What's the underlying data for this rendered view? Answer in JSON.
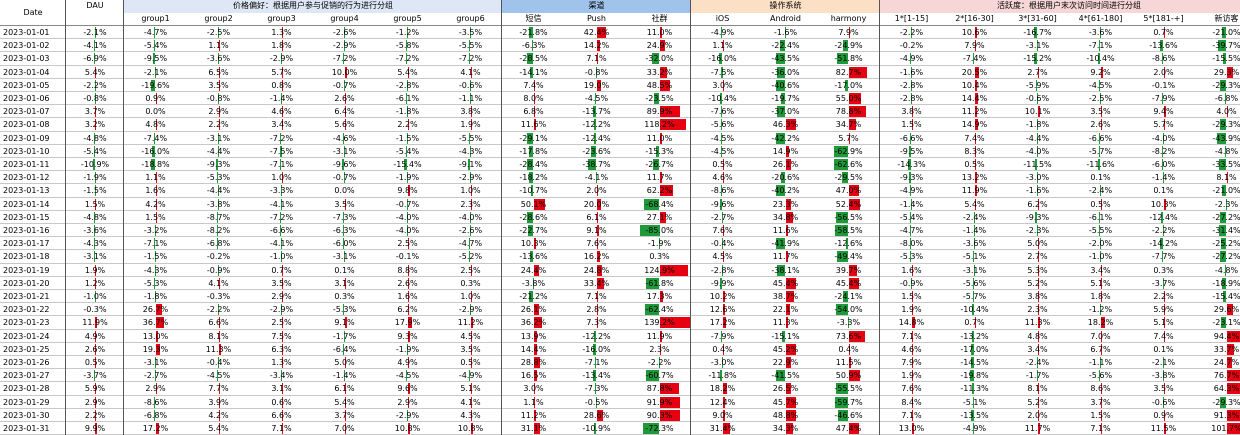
{
  "header": {
    "date_label": "Date",
    "dau_label": "DAU",
    "groups": [
      {
        "label": "价格偏好：根据用户参与促销的行为进行分组",
        "color": "#dde7f6",
        "columns": [
          "group1",
          "group2",
          "group3",
          "group4",
          "group5",
          "group6"
        ]
      },
      {
        "label": "渠道",
        "color": "#9fc3ea",
        "columns": [
          "短信",
          "Push",
          "社群"
        ]
      },
      {
        "label": "操作系统",
        "color": "#fbe0c6",
        "columns": [
          "iOS",
          "Android",
          "harmony"
        ]
      },
      {
        "label": "活跃度：根据用户末次访问时间进行分组",
        "color": "#f6d6d6",
        "columns": [
          "1*[1-15]",
          "2*[16-30]",
          "3*[31-60]",
          "4*[61-180]",
          "5*[181-+]",
          "新访客"
        ]
      }
    ]
  },
  "colors": {
    "positive": "#e60012",
    "negative": "#1f9a3a",
    "grid": "#c8c8c8"
  },
  "chart_data": {
    "type": "table",
    "columns": [
      "DAU",
      "group1",
      "group2",
      "group3",
      "group4",
      "group5",
      "group6",
      "短信",
      "Push",
      "社群",
      "iOS",
      "Android",
      "harmony",
      "1*[1-15]",
      "2*[16-30]",
      "3*[31-60]",
      "4*[61-180]",
      "5*[181-+]",
      "新访客"
    ],
    "rows": [
      {
        "date": "2023-01-01",
        "values": [
          "-2.1%",
          "-4.7%",
          "-2.5%",
          "1.3%",
          "-2.6%",
          "-1.2%",
          "-3.5%",
          "-21.8%",
          "42.4%",
          "11.0%",
          "-4.9%",
          "-1.6%",
          "7.9%",
          "-2.2%",
          "10.6%",
          "-16.7%",
          "-3.6%",
          "0.7%",
          "-21.0%"
        ]
      },
      {
        "date": "2023-01-02",
        "values": [
          "-4.1%",
          "-5.4%",
          "1.1%",
          "1.8%",
          "-2.9%",
          "-5.8%",
          "-5.5%",
          "-6.3%",
          "14.2%",
          "24.9%",
          "1.1%",
          "-22.4%",
          "-24.9%",
          "-0.2%",
          "7.9%",
          "-3.1%",
          "-7.1%",
          "-13.6%",
          "-39.7%"
        ]
      },
      {
        "date": "2023-01-03",
        "values": [
          "-6.9%",
          "-9.5%",
          "-3.6%",
          "-2.9%",
          "-7.2%",
          "-7.2%",
          "-7.2%",
          "-28.5%",
          "7.1%",
          "-32.0%",
          "-16.0%",
          "-43.5%",
          "-51.8%",
          "-4.9%",
          "-7.4%",
          "-15.2%",
          "-10.4%",
          "-8.6%",
          "-15.5%"
        ]
      },
      {
        "date": "2023-01-04",
        "values": [
          "5.4%",
          "-2.1%",
          "6.5%",
          "5.7%",
          "10.0%",
          "5.4%",
          "4.1%",
          "-14.1%",
          "-0.8%",
          "33.2%",
          "-7.5%",
          "-36.0%",
          "82.7%",
          "-1.6%",
          "20.5%",
          "2.7%",
          "9.2%",
          "2.0%",
          "29.3%"
        ]
      },
      {
        "date": "2023-01-05",
        "values": [
          "-2.2%",
          "-19.6%",
          "3.5%",
          "0.8%",
          "-0.7%",
          "-2.8%",
          "-0.6%",
          "7.4%",
          "19.0%",
          "48.5%",
          "3.0%",
          "-40.6%",
          "-17.0%",
          "-2.8%",
          "10.4%",
          "-5.9%",
          "-4.5%",
          "-0.1%",
          "-29.3%"
        ]
      },
      {
        "date": "2023-01-06",
        "values": [
          "-0.8%",
          "0.9%",
          "-0.8%",
          "-1.4%",
          "2.6%",
          "-6.1%",
          "-1.1%",
          "8.0%",
          "-4.5%",
          "-23.5%",
          "-10.4%",
          "-19.7%",
          "55.0%",
          "-2.8%",
          "14.4%",
          "-0.6%",
          "-2.5%",
          "-7.9%",
          "-6.8%"
        ]
      },
      {
        "date": "2023-01-07",
        "values": [
          "3.7%",
          "0.0%",
          "2.9%",
          "4.6%",
          "6.4%",
          "-1.8%",
          "3.8%",
          "6.8%",
          "-13.7%",
          "89.9%",
          "-7.6%",
          "-37.0%",
          "78.8%",
          "3.8%",
          "11.2%",
          "10.1%",
          "3.5%",
          "9.4%",
          "4.0%"
        ]
      },
      {
        "date": "2023-01-08",
        "values": [
          "3.2%",
          "4.8%",
          "2.2%",
          "3.4%",
          "5.6%",
          "2.2%",
          "1.9%",
          "11.6%",
          "-12.2%",
          "118.2%",
          "-5.6%",
          "46.3%",
          "34.7%",
          "1.5%",
          "14.9%",
          "-1.8%",
          "2.6%",
          "5.7%",
          "-29.3%"
        ]
      },
      {
        "date": "2023-01-09",
        "values": [
          "-4.8%",
          "-7.4%",
          "-3.1%",
          "-7.2%",
          "-4.6%",
          "-1.5%",
          "-5.5%",
          "-29.1%",
          "-12.4%",
          "11.0%",
          "-4.5%",
          "-42.2%",
          "5.7%",
          "-6.6%",
          "7.4%",
          "-4.4%",
          "-6.6%",
          "-4.0%",
          "-43.9%"
        ]
      },
      {
        "date": "2023-01-10",
        "values": [
          "-5.4%",
          "-16.0%",
          "-4.4%",
          "-7.5%",
          "-3.1%",
          "-5.4%",
          "-4.3%",
          "-17.8%",
          "-23.6%",
          "-15.3%",
          "-4.5%",
          "14.9%",
          "-62.9%",
          "-9.5%",
          "8.3%",
          "-4.0%",
          "-5.7%",
          "-8.2%",
          "-4.8%"
        ]
      },
      {
        "date": "2023-01-11",
        "values": [
          "-10.9%",
          "-18.8%",
          "-9.3%",
          "-7.1%",
          "-9.6%",
          "-15.4%",
          "-9.1%",
          "-28.4%",
          "-38.7%",
          "-26.7%",
          "0.5%",
          "26.1%",
          "-62.6%",
          "-14.3%",
          "0.5%",
          "-11.5%",
          "-11.6%",
          "-6.0%",
          "-33.5%"
        ]
      },
      {
        "date": "2023-01-12",
        "values": [
          "-1.9%",
          "1.1%",
          "-5.3%",
          "1.0%",
          "-0.7%",
          "-1.9%",
          "-2.9%",
          "-18.2%",
          "-4.1%",
          "11.7%",
          "4.6%",
          "-20.6%",
          "-29.5%",
          "-9.3%",
          "13.2%",
          "-3.0%",
          "0.1%",
          "-1.4%",
          "8.1%"
        ]
      },
      {
        "date": "2023-01-13",
        "values": [
          "-1.5%",
          "1.6%",
          "-4.4%",
          "-3.3%",
          "0.0%",
          "9.8%",
          "1.0%",
          "-10.7%",
          "2.0%",
          "62.2%",
          "-8.6%",
          "-40.2%",
          "47.0%",
          "-4.9%",
          "11.9%",
          "-1.6%",
          "-2.4%",
          "0.1%",
          "-21.0%"
        ]
      },
      {
        "date": "2023-01-14",
        "values": [
          "1.5%",
          "4.2%",
          "-3.8%",
          "-4.1%",
          "3.5%",
          "-0.7%",
          "2.3%",
          "50.1%",
          "20.0%",
          "-68.4%",
          "-9.6%",
          "23.3%",
          "52.4%",
          "-1.4%",
          "5.4%",
          "6.2%",
          "0.5%",
          "10.3%",
          "-2.3%"
        ]
      },
      {
        "date": "2023-01-15",
        "values": [
          "-4.8%",
          "1.5%",
          "-8.7%",
          "-7.2%",
          "-7.3%",
          "-4.0%",
          "-4.0%",
          "-28.6%",
          "6.1%",
          "27.1%",
          "-2.7%",
          "34.8%",
          "-56.5%",
          "-5.4%",
          "-2.4%",
          "-9.3%",
          "-6.1%",
          "-12.4%",
          "-27.2%"
        ]
      },
      {
        "date": "2023-01-16",
        "values": [
          "-3.6%",
          "-3.2%",
          "-8.2%",
          "-6.6%",
          "-6.3%",
          "-4.0%",
          "-2.6%",
          "-22.7%",
          "9.1%",
          "-85.0%",
          "7.6%",
          "11.6%",
          "-58.5%",
          "-4.7%",
          "-1.4%",
          "-2.3%",
          "-5.5%",
          "-2.2%",
          "-31.4%"
        ]
      },
      {
        "date": "2023-01-17",
        "values": [
          "-4.3%",
          "-7.1%",
          "-6.8%",
          "-4.1%",
          "-6.0%",
          "2.5%",
          "-4.7%",
          "10.3%",
          "7.6%",
          "-1.9%",
          "-0.4%",
          "-41.9%",
          "-12.6%",
          "-8.0%",
          "-3.6%",
          "5.0%",
          "-2.0%",
          "-14.2%",
          "-25.2%"
        ]
      },
      {
        "date": "2023-01-18",
        "values": [
          "-3.1%",
          "-1.5%",
          "-0.2%",
          "-1.0%",
          "-3.1%",
          "-0.1%",
          "-5.2%",
          "-13.6%",
          "16.2%",
          "0.3%",
          "4.5%",
          "11.7%",
          "-49.4%",
          "-5.3%",
          "-5.1%",
          "2.7%",
          "-1.0%",
          "-7.7%",
          "-27.2%"
        ]
      },
      {
        "date": "2023-01-19",
        "values": [
          "1.9%",
          "-4.3%",
          "-0.9%",
          "0.7%",
          "0.1%",
          "8.8%",
          "2.5%",
          "24.4%",
          "24.8%",
          "124.9%",
          "-2.8%",
          "-38.1%",
          "39.7%",
          "1.6%",
          "-3.1%",
          "5.3%",
          "3.4%",
          "0.3%",
          "-4.8%"
        ]
      },
      {
        "date": "2023-01-20",
        "values": [
          "1.2%",
          "-5.3%",
          "4.1%",
          "3.5%",
          "3.1%",
          "2.6%",
          "0.3%",
          "-3.8%",
          "33.4%",
          "-61.8%",
          "-9.9%",
          "45.4%",
          "45.4%",
          "-0.9%",
          "-5.6%",
          "5.2%",
          "5.1%",
          "-3.7%",
          "-18.9%"
        ]
      },
      {
        "date": "2023-01-21",
        "values": [
          "-1.0%",
          "-1.8%",
          "-0.3%",
          "2.9%",
          "0.3%",
          "1.6%",
          "1.0%",
          "-21.2%",
          "7.1%",
          "17.3%",
          "10.2%",
          "38.7%",
          "-24.1%",
          "1.5%",
          "-5.7%",
          "3.8%",
          "1.8%",
          "2.2%",
          "-15.4%"
        ]
      },
      {
        "date": "2023-01-22",
        "values": [
          "-0.3%",
          "26.7%",
          "-2.2%",
          "-2.9%",
          "-5.3%",
          "6.2%",
          "-2.9%",
          "26.1%",
          "2.8%",
          "-62.4%",
          "12.6%",
          "22.1%",
          "-54.0%",
          "1.9%",
          "-10.4%",
          "2.3%",
          "-1.2%",
          "5.9%",
          "29.6%"
        ]
      },
      {
        "date": "2023-01-23",
        "values": [
          "11.9%",
          "36.7%",
          "6.6%",
          "2.5%",
          "9.1%",
          "17.9%",
          "11.2%",
          "36.2%",
          "7.3%",
          "139.2%",
          "17.2%",
          "11.3%",
          "-3.3%",
          "14.8%",
          "0.7%",
          "11.3%",
          "18.2%",
          "5.1%",
          "-23.1%"
        ]
      },
      {
        "date": "2023-01-24",
        "values": [
          "4.9%",
          "13.0%",
          "8.1%",
          "7.5%",
          "-1.7%",
          "9.3%",
          "4.5%",
          "13.9%",
          "-12.2%",
          "11.9%",
          "-7.9%",
          "-15.1%",
          "73.6%",
          "7.1%",
          "-13.2%",
          "4.8%",
          "7.0%",
          "7.4%",
          "94.4%"
        ]
      },
      {
        "date": "2023-01-25",
        "values": [
          "2.6%",
          "19.3%",
          "11.3%",
          "6.3%",
          "-6.4%",
          "-1.9%",
          "3.5%",
          "14.4%",
          "-16.0%",
          "2.3%",
          "0.4%",
          "45.2%",
          "0.4%",
          "4.6%",
          "-17.0%",
          "3.4%",
          "6.7%",
          "0.1%",
          "33.7%"
        ]
      },
      {
        "date": "2023-01-26",
        "values": [
          "0.5%",
          "-3.1%",
          "-0.4%",
          "1.3%",
          "5.0%",
          "4.9%",
          "0.5%",
          "28.8%",
          "-7.1%",
          "-2.2%",
          "-3.0%",
          "22.9%",
          "11.5%",
          "7.9%",
          "-14.5%",
          "-2.4%",
          "-1.1%",
          "-2.1%",
          "24.7%"
        ]
      },
      {
        "date": "2023-01-27",
        "values": [
          "-3.7%",
          "-2.7%",
          "-4.5%",
          "-3.4%",
          "-1.4%",
          "-4.5%",
          "-4.9%",
          "16.5%",
          "-13.4%",
          "-60.7%",
          "-11.8%",
          "-41.5%",
          "50.9%",
          "1.9%",
          "-19.8%",
          "-1.7%",
          "-5.6%",
          "-3.8%",
          "76.7%"
        ]
      },
      {
        "date": "2023-01-28",
        "values": [
          "5.9%",
          "2.9%",
          "7.7%",
          "3.1%",
          "6.1%",
          "9.6%",
          "5.1%",
          "3.0%",
          "-7.3%",
          "87.8%",
          "18.2%",
          "26.5%",
          "-55.5%",
          "7.6%",
          "-11.3%",
          "8.1%",
          "8.6%",
          "3.5%",
          "64.3%"
        ]
      },
      {
        "date": "2023-01-29",
        "values": [
          "2.9%",
          "-8.6%",
          "3.9%",
          "0.6%",
          "5.4%",
          "2.9%",
          "4.1%",
          "1.1%",
          "-0.5%",
          "91.9%",
          "12.4%",
          "45.7%",
          "-59.7%",
          "8.4%",
          "-5.1%",
          "5.2%",
          "3.7%",
          "-0.6%",
          "-29.3%"
        ]
      },
      {
        "date": "2023-01-30",
        "values": [
          "2.2%",
          "-6.8%",
          "4.2%",
          "6.6%",
          "3.7%",
          "-2.9%",
          "4.3%",
          "11.2%",
          "28.6%",
          "90.3%",
          "9.0%",
          "48.8%",
          "-46.6%",
          "7.1%",
          "-13.5%",
          "2.0%",
          "1.5%",
          "0.9%",
          "91.3%"
        ]
      },
      {
        "date": "2023-01-31",
        "values": [
          "9.9%",
          "17.2%",
          "5.4%",
          "7.1%",
          "7.0%",
          "10.8%",
          "10.8%",
          "31.1%",
          "-10.9%",
          "-72.3%",
          "31.4%",
          "34.3%",
          "47.4%",
          "13.0%",
          "-4.9%",
          "11.7%",
          "7.1%",
          "11.5%",
          "101.7%"
        ]
      }
    ]
  }
}
